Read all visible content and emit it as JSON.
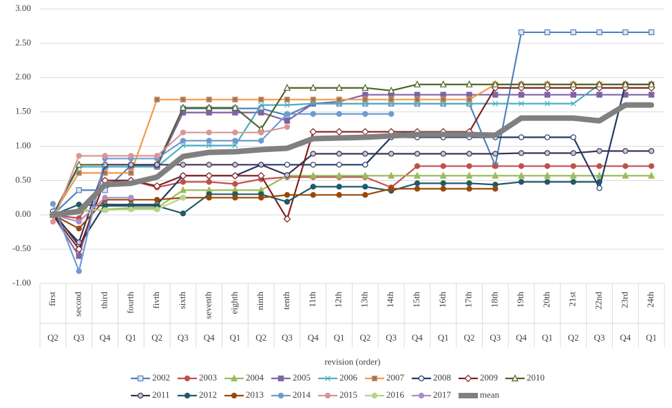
{
  "chart_data": {
    "type": "line",
    "x_label": "revision (order)",
    "categories": [
      "first",
      "second",
      "third",
      "fourth",
      "fivth",
      "sixth",
      "seventh",
      "eighth",
      "ninth",
      "tenth",
      "11th",
      "12th",
      "13th",
      "14th",
      "15th",
      "16th",
      "17th",
      "18th",
      "19th",
      "20th",
      "21st",
      "22nd",
      "23rd",
      "24th"
    ],
    "quarters": [
      "Q2",
      "Q3",
      "Q4",
      "Q1",
      "Q2",
      "Q3",
      "Q4",
      "Q1",
      "Q2",
      "Q3",
      "Q4",
      "Q1",
      "Q2",
      "Q3",
      "Q4",
      "Q1",
      "Q2",
      "Q3",
      "Q4",
      "Q1",
      "Q2",
      "Q3",
      "Q4",
      "Q1"
    ],
    "ylim": [
      -1,
      3
    ],
    "yticks": [
      {
        "value": 3,
        "label": "3.00"
      },
      {
        "value": 2.5,
        "label": "2.50"
      },
      {
        "value": 2,
        "label": "2.00"
      },
      {
        "value": 1.5,
        "label": "1.50"
      },
      {
        "value": 1,
        "label": "1.00"
      },
      {
        "value": 0.5,
        "label": "0.50"
      },
      {
        "value": 0,
        "label": "0.00"
      },
      {
        "value": -0.5,
        "label": "-0.50"
      },
      {
        "value": -1,
        "label": "-1.00"
      }
    ],
    "grid": true,
    "legend": "bottom",
    "series": [
      {
        "name": "2002",
        "color": "#4f81bd",
        "marker": "square",
        "marker_fill": "#dce6f2",
        "values": [
          0,
          0.36,
          0.36,
          0.72,
          0.72,
          1.55,
          1.55,
          1.55,
          1.55,
          1.45,
          1.62,
          1.62,
          1.62,
          1.62,
          1.62,
          1.62,
          1.62,
          0.72,
          2.66,
          2.66,
          2.66,
          2.66,
          2.66,
          2.66
        ]
      },
      {
        "name": "2003",
        "color": "#c0504d",
        "marker": "circle",
        "marker_fill": "#c0504d",
        "values": [
          0,
          -0.05,
          0.5,
          0.5,
          0.4,
          0.48,
          0.48,
          0.45,
          0.52,
          0.55,
          0.55,
          0.55,
          0.55,
          0.4,
          0.71,
          0.71,
          0.71,
          0.71,
          0.71,
          0.71,
          0.71,
          0.71,
          0.71,
          0.71
        ]
      },
      {
        "name": "2004",
        "color": "#9bbb59",
        "marker": "triangle",
        "marker_fill": "#9bbb59",
        "values": [
          0,
          0.05,
          0.08,
          0.1,
          0.1,
          0.36,
          0.36,
          0.36,
          0.36,
          0.57,
          0.57,
          0.57,
          0.57,
          0.57,
          0.57,
          0.57,
          0.57,
          0.57,
          0.57,
          0.57,
          0.57,
          0.57,
          0.57,
          0.57
        ]
      },
      {
        "name": "2005",
        "color": "#8064a2",
        "marker": "square",
        "marker_fill": "#8064a2",
        "values": [
          0,
          -0.6,
          0.7,
          0.7,
          0.7,
          1.49,
          1.49,
          1.49,
          1.49,
          1.37,
          1.62,
          1.65,
          1.75,
          1.75,
          1.75,
          1.75,
          1.75,
          1.75,
          1.75,
          1.75,
          1.75,
          1.75,
          1.75,
          1.75
        ]
      },
      {
        "name": "2006",
        "color": "#4bacc6",
        "marker": "x",
        "marker_fill": "#4bacc6",
        "values": [
          0,
          0.7,
          0.7,
          0.7,
          0.7,
          1.01,
          1.01,
          1.01,
          1.6,
          1.6,
          1.62,
          1.62,
          1.62,
          1.62,
          1.62,
          1.62,
          1.62,
          1.62,
          1.62,
          1.62,
          1.62,
          1.9,
          1.9,
          1.9
        ]
      },
      {
        "name": "2007",
        "color": "#f79646",
        "marker": "square",
        "marker_fill": "#7f7f7f",
        "values": [
          0,
          0.61,
          0.61,
          0.61,
          1.68,
          1.68,
          1.68,
          1.68,
          1.68,
          1.68,
          1.68,
          1.68,
          1.68,
          1.68,
          1.68,
          1.68,
          1.68,
          1.9,
          1.9,
          1.9,
          1.9,
          1.9,
          1.9,
          1.9
        ]
      },
      {
        "name": "2008",
        "color": "#1f3864",
        "marker": "circle",
        "marker_fill": "#ffffff",
        "values": [
          0.05,
          -0.45,
          0.15,
          0.15,
          0.15,
          0.57,
          0.57,
          0.57,
          0.73,
          0.73,
          0.73,
          0.73,
          0.73,
          1.13,
          1.13,
          1.13,
          1.13,
          1.13,
          1.13,
          1.13,
          1.13,
          0.39,
          1.9,
          1.9
        ]
      },
      {
        "name": "2009",
        "color": "#7f1f1f",
        "marker": "diamond",
        "marker_fill": "#ffffff",
        "values": [
          0,
          -0.5,
          0.5,
          0.5,
          0.42,
          0.57,
          0.57,
          0.57,
          0.57,
          -0.06,
          1.21,
          1.21,
          1.21,
          1.21,
          1.21,
          1.21,
          1.21,
          1.85,
          1.85,
          1.85,
          1.85,
          1.85,
          1.85,
          1.85
        ]
      },
      {
        "name": "2010",
        "color": "#4f6228",
        "marker": "triangle",
        "marker_fill": "#ffffff",
        "values": [
          0,
          0.73,
          0.73,
          0.73,
          0.73,
          1.56,
          1.56,
          1.56,
          1.25,
          1.85,
          1.85,
          1.85,
          1.85,
          1.81,
          1.9,
          1.9,
          1.9,
          1.9,
          1.9,
          1.9,
          1.9,
          1.9,
          1.9,
          1.9
        ]
      },
      {
        "name": "2011",
        "color": "#3f3151",
        "marker": "circle",
        "marker_fill": "#ccc1da",
        "values": [
          0,
          -0.4,
          0.73,
          0.73,
          0.73,
          0.73,
          0.73,
          0.73,
          0.73,
          0.58,
          0.89,
          0.89,
          0.89,
          0.89,
          0.89,
          0.89,
          0.89,
          0.89,
          0.9,
          0.9,
          0.9,
          0.93,
          0.93,
          0.93
        ]
      },
      {
        "name": "2012",
        "color": "#215968",
        "marker": "circle",
        "marker_fill": "#215968",
        "values": [
          0,
          0.15,
          0.13,
          0.13,
          0.13,
          0.02,
          0.3,
          0.3,
          0.3,
          0.19,
          0.41,
          0.41,
          0.41,
          0.35,
          0.46,
          0.46,
          0.46,
          0.44,
          0.48,
          0.48,
          0.48,
          0.48,
          null,
          null
        ]
      },
      {
        "name": "2013",
        "color": "#984807",
        "marker": "circle",
        "marker_fill": "#984807",
        "values": [
          0,
          -0.2,
          0.22,
          0.22,
          0.22,
          0.25,
          0.25,
          0.25,
          0.25,
          0.29,
          0.29,
          0.29,
          0.29,
          0.38,
          0.38,
          0.38,
          0.38,
          0.38,
          null,
          null,
          null,
          null,
          null,
          null
        ]
      },
      {
        "name": "2014",
        "color": "#6d9bd1",
        "marker": "circle",
        "marker_fill": "#6d9bd1",
        "values": [
          0.16,
          -0.82,
          0.82,
          0.82,
          0.82,
          1.08,
          1.08,
          1.08,
          1.08,
          1.47,
          1.47,
          1.47,
          1.47,
          1.47,
          null,
          null,
          null,
          null,
          null,
          null,
          null,
          null,
          null,
          null
        ]
      },
      {
        "name": "2015",
        "color": "#d99694",
        "marker": "circle",
        "marker_fill": "#d99694",
        "values": [
          -0.1,
          0.86,
          0.86,
          0.86,
          0.86,
          1.2,
          1.2,
          1.2,
          1.2,
          1.28,
          null,
          null,
          null,
          null,
          null,
          null,
          null,
          null,
          null,
          null,
          null,
          null,
          null,
          null
        ]
      },
      {
        "name": "2016",
        "color": "#b5d58b",
        "marker": "circle",
        "marker_fill": "#b5d58b",
        "values": [
          0,
          0.07,
          0.07,
          0.08,
          0.08,
          0.25,
          null,
          null,
          null,
          null,
          null,
          null,
          null,
          null,
          null,
          null,
          null,
          null,
          null,
          null,
          null,
          null,
          null,
          null
        ]
      },
      {
        "name": "2017",
        "color": "#a88fc9",
        "marker": "circle",
        "marker_fill": "#a88fc9",
        "values": [
          0,
          -0.1,
          0.25,
          0.25,
          null,
          null,
          null,
          null,
          null,
          null,
          null,
          null,
          null,
          null,
          null,
          null,
          null,
          null,
          null,
          null,
          null,
          null,
          null,
          null
        ]
      },
      {
        "name": "mean",
        "color": "#808080",
        "marker": "none",
        "width": 8,
        "values": [
          0,
          0.05,
          0.44,
          0.46,
          0.55,
          0.85,
          0.91,
          0.92,
          0.95,
          0.97,
          1.11,
          1.12,
          1.13,
          1.15,
          1.17,
          1.17,
          1.17,
          1.16,
          1.41,
          1.41,
          1.41,
          1.37,
          1.6,
          1.6
        ]
      }
    ]
  }
}
